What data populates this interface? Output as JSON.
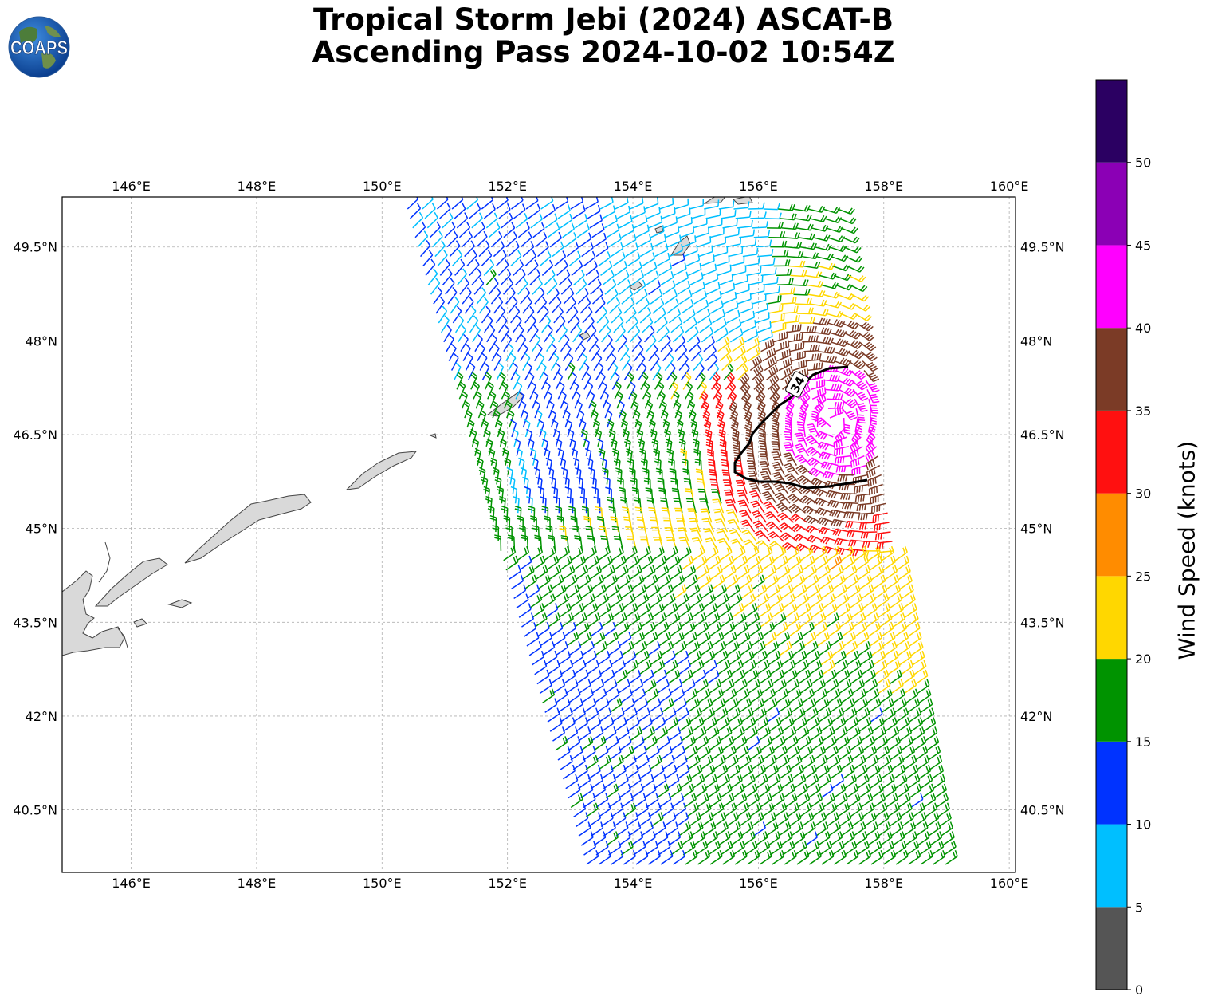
{
  "header": {
    "title_line1": "Tropical Storm Jebi (2024) ASCAT-B",
    "title_line2": "Ascending Pass 2024-10-02 10:54Z"
  },
  "logo": {
    "text": "COAPS",
    "icon": "globe-icon"
  },
  "chart_data": {
    "type": "map-wind-barbs",
    "lon_ticks": [
      "146°E",
      "148°E",
      "150°E",
      "152°E",
      "154°E",
      "156°E",
      "158°E",
      "160°E"
    ],
    "lat_ticks": [
      "49.5°N",
      "48°N",
      "46.5°N",
      "45°N",
      "43.5°N",
      "42°N",
      "40.5°N"
    ],
    "lon_values": [
      146,
      148,
      150,
      152,
      154,
      156,
      158,
      160
    ],
    "lat_values": [
      49.5,
      48,
      46.5,
      45,
      43.5,
      42,
      40.5
    ],
    "xlim": [
      144.9,
      160.1
    ],
    "ylim": [
      39.5,
      50.3
    ],
    "grid": true,
    "contour_label": "34",
    "colorbar": {
      "label": "Wind Speed (knots)",
      "ticks": [
        "0",
        "5",
        "10",
        "15",
        "20",
        "25",
        "30",
        "35",
        "40",
        "45",
        "50"
      ],
      "bins": [
        {
          "min": 0,
          "max": 5,
          "color": "#555555"
        },
        {
          "min": 5,
          "max": 10,
          "color": "#00bfff"
        },
        {
          "min": 10,
          "max": 15,
          "color": "#0033ff"
        },
        {
          "min": 15,
          "max": 20,
          "color": "#009300"
        },
        {
          "min": 20,
          "max": 25,
          "color": "#ffd700"
        },
        {
          "min": 25,
          "max": 30,
          "color": "#ff8c00"
        },
        {
          "min": 30,
          "max": 35,
          "color": "#ff1010"
        },
        {
          "min": 35,
          "max": 40,
          "color": "#7b3b26"
        },
        {
          "min": 40,
          "max": 45,
          "color": "#ff00ff"
        },
        {
          "min": 45,
          "max": 50,
          "color": "#8b00b5"
        },
        {
          "min": 50,
          "max": 55,
          "color": "#2b0062"
        }
      ]
    }
  }
}
